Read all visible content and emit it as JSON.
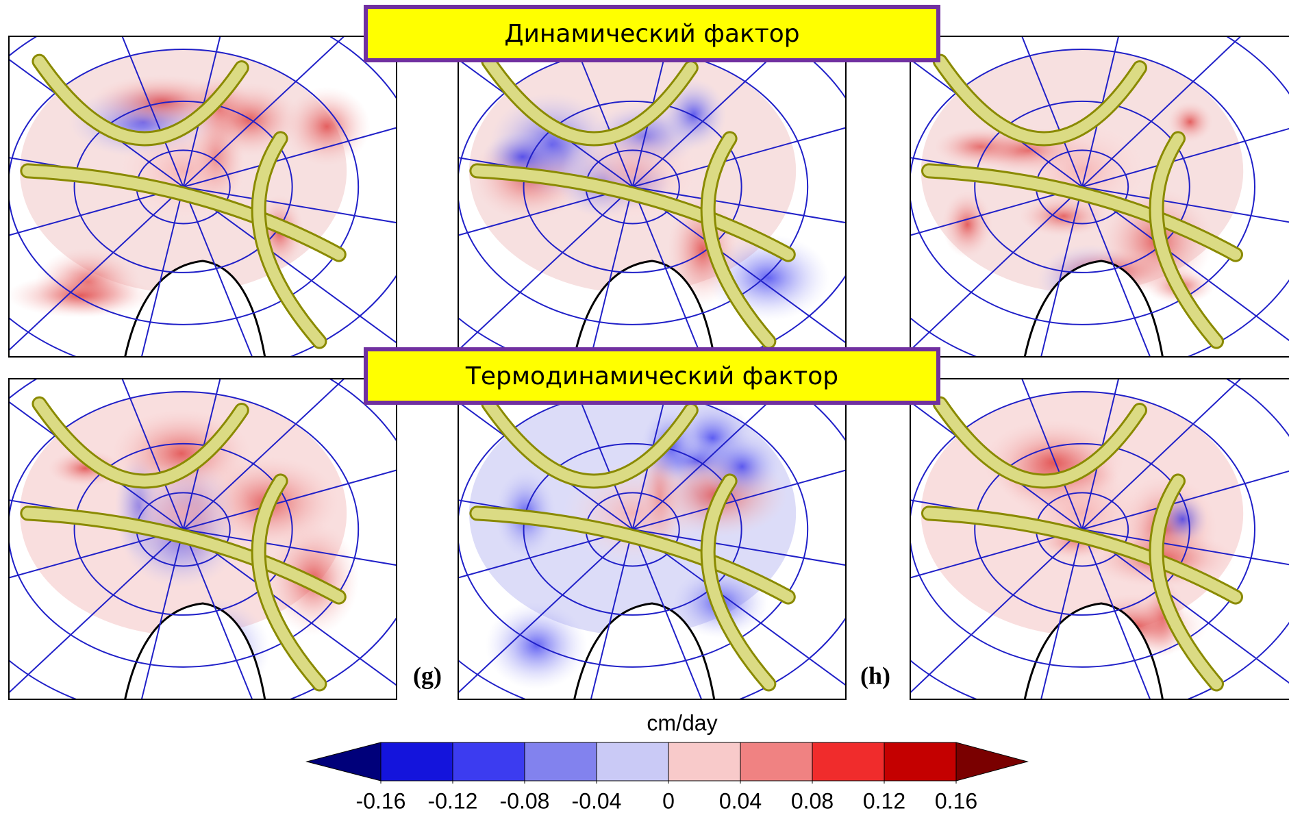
{
  "banners": [
    "Динамический фактор",
    "Термодинамический фактор"
  ],
  "panel_labels": [
    "(g)",
    "(h)"
  ],
  "colorbar": {
    "label": "cm/day",
    "ticks": [
      -0.16,
      -0.12,
      -0.08,
      -0.04,
      0,
      0.04,
      0.08,
      0.12,
      0.16
    ],
    "colors": [
      "#1414dc",
      "#3c3cf0",
      "#8282ee",
      "#cacaf6",
      "#f8caca",
      "#f08282",
      "#f02c2c",
      "#c40000"
    ],
    "extend_colors": [
      "#00007a",
      "#7a0000"
    ]
  }
}
